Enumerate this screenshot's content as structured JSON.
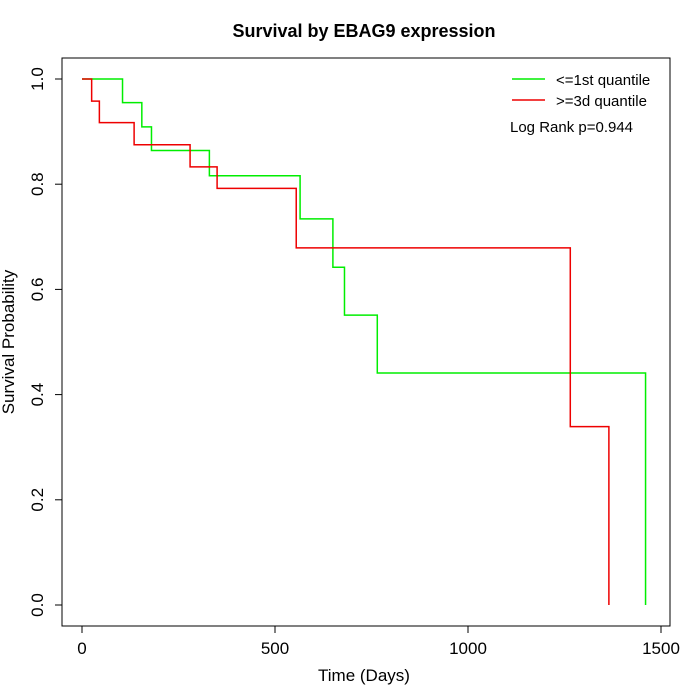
{
  "chart_data": {
    "type": "line",
    "subtype": "kaplan-meier-step",
    "title": "Survival by EBAG9 expression",
    "xlabel": "Time (Days)",
    "ylabel": "Survival Probability",
    "xlim": [
      0,
      1500
    ],
    "ylim": [
      0,
      1
    ],
    "x_ticks": [
      0,
      500,
      1000,
      1500
    ],
    "y_ticks": [
      0.0,
      0.2,
      0.4,
      0.6,
      0.8,
      1.0
    ],
    "x_tick_labels": [
      "0",
      "500",
      "1000",
      "1500"
    ],
    "y_tick_labels": [
      "0.0",
      "0.2",
      "0.4",
      "0.6",
      "0.8",
      "1.0"
    ],
    "grid": false,
    "legend_position": "top-right",
    "annotation": "Log Rank p=0.944",
    "series": [
      {
        "name": "<=1st quantile",
        "color": "#00ee00",
        "x": [
          0,
          105,
          155,
          180,
          330,
          565,
          650,
          680,
          765,
          1460
        ],
        "y": [
          1.0,
          0.955,
          0.909,
          0.864,
          0.816,
          0.734,
          0.642,
          0.551,
          0.441,
          0.0
        ]
      },
      {
        "name": ">=3d quantile",
        "color": "#ee0000",
        "x": [
          0,
          25,
          45,
          135,
          280,
          350,
          555,
          1265,
          1365
        ],
        "y": [
          1.0,
          0.958,
          0.917,
          0.875,
          0.833,
          0.792,
          0.679,
          0.339,
          0.0
        ]
      }
    ]
  }
}
